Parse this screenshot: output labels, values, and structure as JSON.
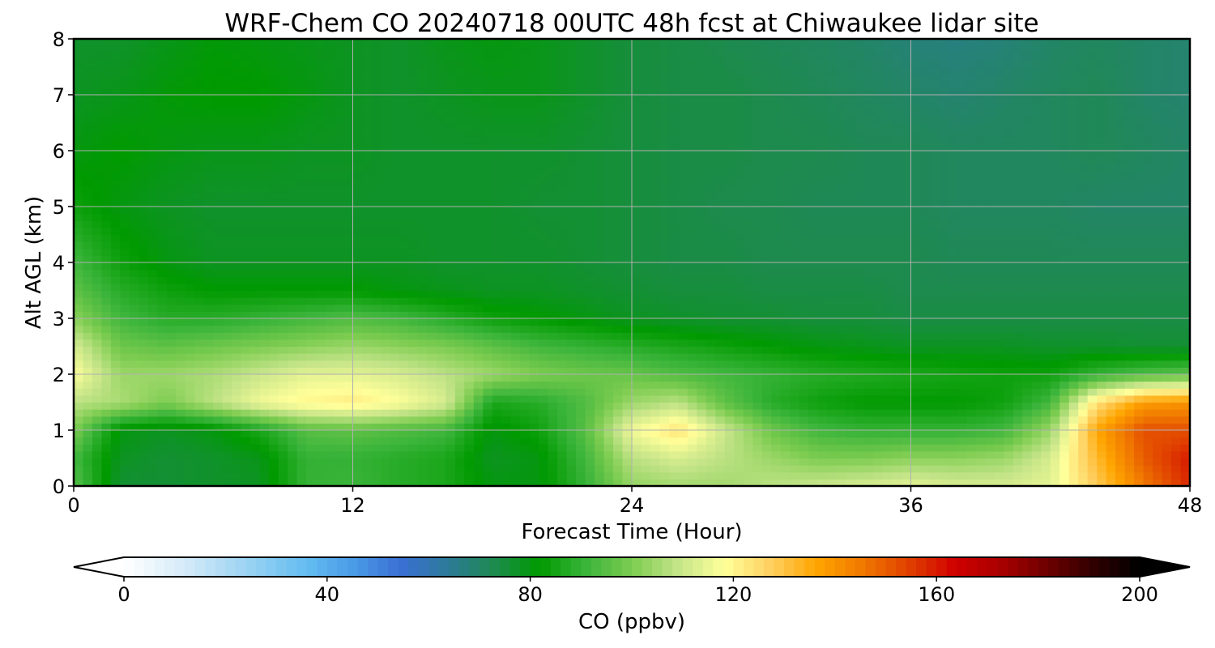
{
  "chart_data": {
    "type": "heatmap",
    "title": "WRF-Chem CO  20240718 00UTC 48h fcst at Chiwaukee lidar site",
    "xlabel": "Forecast Time (Hour)",
    "ylabel": "Alt AGL (km)",
    "xlim": [
      0,
      48
    ],
    "ylim": [
      0,
      8
    ],
    "xticks": [
      0,
      12,
      24,
      36,
      48
    ],
    "yticks": [
      0,
      1,
      2,
      3,
      4,
      5,
      6,
      7,
      8
    ],
    "grid": true,
    "x": [
      0,
      2,
      4,
      6,
      8,
      10,
      12,
      14,
      16,
      18,
      20,
      22,
      24,
      26,
      28,
      30,
      32,
      34,
      36,
      38,
      40,
      42,
      44,
      46,
      48
    ],
    "y": [
      0,
      0.5,
      1,
      1.5,
      2,
      2.5,
      3,
      3.5,
      4,
      5,
      6,
      7,
      8
    ],
    "z_units": "ppbv",
    "z": [
      [
        95,
        76,
        76,
        77,
        78,
        90,
        91,
        88,
        86,
        80,
        80,
        90,
        103,
        105,
        105,
        108,
        110,
        112,
        114,
        112,
        112,
        114,
        128,
        145,
        158
      ],
      [
        92,
        78,
        76,
        77,
        79,
        90,
        90,
        88,
        86,
        78,
        80,
        92,
        108,
        112,
        108,
        104,
        100,
        100,
        102,
        102,
        104,
        112,
        132,
        150,
        160
      ],
      [
        100,
        80,
        78,
        80,
        86,
        95,
        96,
        94,
        92,
        80,
        84,
        95,
        116,
        124,
        110,
        98,
        92,
        90,
        90,
        90,
        92,
        104,
        136,
        152,
        152
      ],
      [
        108,
        106,
        100,
        108,
        116,
        120,
        122,
        118,
        112,
        86,
        88,
        94,
        104,
        108,
        96,
        88,
        84,
        82,
        82,
        82,
        84,
        92,
        124,
        138,
        140
      ],
      [
        118,
        104,
        104,
        106,
        110,
        114,
        114,
        112,
        108,
        104,
        100,
        98,
        97,
        94,
        92,
        90,
        88,
        87,
        86,
        85,
        84,
        84,
        90,
        94,
        96
      ],
      [
        112,
        98,
        96,
        98,
        100,
        102,
        104,
        102,
        100,
        96,
        92,
        90,
        88,
        86,
        84,
        82,
        80,
        79,
        78,
        78,
        78,
        77,
        77,
        76,
        76
      ],
      [
        102,
        92,
        88,
        88,
        90,
        92,
        94,
        92,
        88,
        84,
        82,
        80,
        78,
        77,
        76,
        76,
        75,
        75,
        74,
        74,
        74,
        74,
        74,
        74,
        74
      ],
      [
        96,
        88,
        84,
        82,
        82,
        82,
        82,
        80,
        79,
        78,
        78,
        77,
        76,
        75,
        75,
        74,
        74,
        74,
        73,
        73,
        73,
        73,
        73,
        73,
        73
      ],
      [
        92,
        84,
        80,
        78,
        78,
        78,
        78,
        78,
        77,
        77,
        77,
        76,
        75,
        74,
        74,
        73,
        73,
        73,
        73,
        72,
        72,
        72,
        72,
        72,
        72
      ],
      [
        84,
        80,
        78,
        77,
        77,
        77,
        77,
        77,
        77,
        77,
        76,
        76,
        75,
        74,
        73,
        73,
        72,
        72,
        72,
        71,
        71,
        71,
        70,
        70,
        70
      ],
      [
        80,
        82,
        80,
        79,
        79,
        78,
        78,
        77,
        77,
        77,
        77,
        76,
        75,
        74,
        74,
        73,
        73,
        72,
        72,
        71,
        71,
        71,
        72,
        71,
        70
      ],
      [
        78,
        79,
        81,
        82,
        82,
        80,
        78,
        77,
        78,
        79,
        79,
        77,
        75,
        74,
        74,
        73,
        72,
        71,
        70,
        69,
        70,
        71,
        72,
        70,
        69
      ],
      [
        77,
        77,
        79,
        81,
        80,
        79,
        78,
        77,
        79,
        80,
        79,
        77,
        75,
        74,
        73,
        72,
        71,
        70,
        68,
        67,
        68,
        70,
        71,
        70,
        69
      ]
    ],
    "colorbar": {
      "label": "CO  (ppbv)",
      "min": 0,
      "max": 200,
      "extend": "both",
      "ticks": [
        0,
        40,
        80,
        120,
        160,
        200
      ],
      "colors": [
        "#ffffff",
        "#e0f0fa",
        "#b8dff5",
        "#8ccdf2",
        "#62bbf0",
        "#4a9ae6",
        "#3a6fd4",
        "#2d7a9a",
        "#1e8a50",
        "#009a00",
        "#3ab43a",
        "#7ccc50",
        "#c4e488",
        "#ffff9a",
        "#ffd060",
        "#ffa500",
        "#f07800",
        "#e04000",
        "#d00000",
        "#a80000",
        "#6e0000",
        "#300000",
        "#000000"
      ]
    }
  }
}
